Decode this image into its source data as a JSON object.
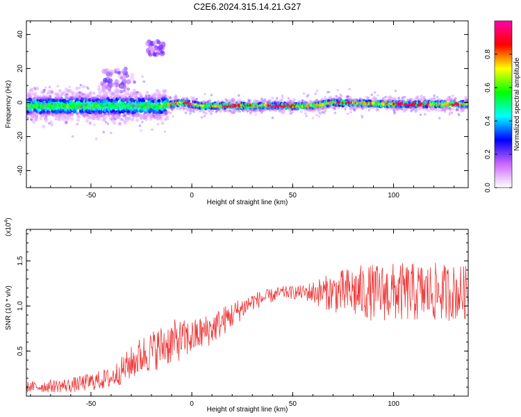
{
  "figure": {
    "title": "C2E6.2024.315.14.21.G27"
  },
  "chart_data": [
    {
      "type": "heatmap",
      "xlabel": "Height of straight line (km)",
      "ylabel": "Frequency (Hz)",
      "xlim": [
        -82,
        137
      ],
      "ylim": [
        -50,
        48
      ],
      "x_ticks": [
        -50,
        0,
        50,
        100
      ],
      "y_ticks": [
        -40,
        -20,
        0,
        20,
        40
      ],
      "grid": false,
      "colorbar": {
        "label": "Normalized spectral amplitude",
        "range": [
          0.0,
          1.0
        ],
        "ticks": [
          "0.0",
          "0.2",
          "0.4",
          "0.6",
          "0.8"
        ],
        "tick_values": [
          0.0,
          0.2,
          0.4,
          0.6,
          0.8
        ],
        "colors": [
          "#ffffff",
          "#cc66ff",
          "#0000ff",
          "#00ffff",
          "#00ff00",
          "#ffff00",
          "#ff0000",
          "#ff00aa"
        ]
      },
      "band": {
        "center_hz": [
          {
            "x": -82,
            "y": -2
          },
          {
            "x": -15,
            "y": -2
          },
          {
            "x": -5,
            "y": 0
          },
          {
            "x": 5,
            "y": -2
          },
          {
            "x": 60,
            "y": -2
          },
          {
            "x": 70,
            "y": 0
          },
          {
            "x": 100,
            "y": -1
          },
          {
            "x": 137,
            "y": -1
          }
        ],
        "hot_segments_km": [
          [
            -5,
            0
          ],
          [
            15,
            30
          ],
          [
            38,
            52
          ],
          [
            72,
            80
          ],
          [
            100,
            118
          ],
          [
            128,
            133
          ]
        ],
        "diffuse_tails": [
          {
            "x_range": [
              -45,
              -28
            ],
            "y_range": [
              5,
              20
            ]
          },
          {
            "x_range": [
              -22,
              -14
            ],
            "y_range": [
              28,
              36
            ]
          }
        ]
      }
    },
    {
      "type": "line",
      "xlabel": "Height of straight line (km)",
      "ylabel": "SNR (10 * v/v)",
      "y_multiplier_label": "(x10",
      "y_multiplier_exp": "4",
      "y_multiplier_close": ")",
      "xlim": [
        -82,
        137
      ],
      "ylim": [
        0.0,
        1.85
      ],
      "x_ticks": [
        -50,
        0,
        50,
        100
      ],
      "y_ticks": [
        "0.5",
        "1.0",
        "1.5"
      ],
      "y_tick_values": [
        0.5,
        1.0,
        1.5
      ],
      "grid": false,
      "series_color": "#ee3333",
      "trend": [
        {
          "x": -82,
          "mean": 0.1,
          "spread": 0.06
        },
        {
          "x": -60,
          "mean": 0.12,
          "spread": 0.08
        },
        {
          "x": -40,
          "mean": 0.2,
          "spread": 0.12
        },
        {
          "x": -25,
          "mean": 0.45,
          "spread": 0.22
        },
        {
          "x": -10,
          "mean": 0.6,
          "spread": 0.25
        },
        {
          "x": 0,
          "mean": 0.65,
          "spread": 0.2
        },
        {
          "x": 10,
          "mean": 0.75,
          "spread": 0.18
        },
        {
          "x": 20,
          "mean": 0.9,
          "spread": 0.15
        },
        {
          "x": 30,
          "mean": 1.05,
          "spread": 0.1
        },
        {
          "x": 45,
          "mean": 1.15,
          "spread": 0.07
        },
        {
          "x": 55,
          "mean": 1.15,
          "spread": 0.08
        },
        {
          "x": 65,
          "mean": 1.15,
          "spread": 0.18
        },
        {
          "x": 80,
          "mean": 1.15,
          "spread": 0.3
        },
        {
          "x": 100,
          "mean": 1.15,
          "spread": 0.33
        },
        {
          "x": 120,
          "mean": 1.15,
          "spread": 0.33
        },
        {
          "x": 137,
          "mean": 1.15,
          "spread": 0.3
        }
      ]
    }
  ]
}
